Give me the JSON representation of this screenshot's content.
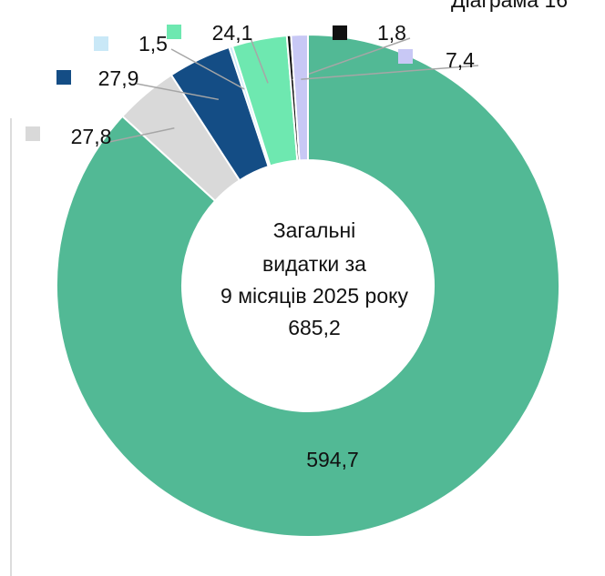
{
  "chart_data": {
    "type": "donut",
    "title": "Діаграма 16",
    "center_text": [
      "Загальні",
      "видатки за",
      "9 місяців 2025 року",
      "685,2"
    ],
    "values": [
      594.7,
      27.8,
      27.9,
      1.5,
      24.1,
      1.8,
      7.4
    ],
    "value_labels": [
      "594,7",
      "27,8",
      "27,9",
      "1,5",
      "24,1",
      "1,8",
      "7,4"
    ],
    "colors": [
      "#52b995",
      "#d9d9d9",
      "#144d85",
      "#c9e8f7",
      "#6ee8b0",
      "#111111",
      "#c8c8f5"
    ]
  }
}
